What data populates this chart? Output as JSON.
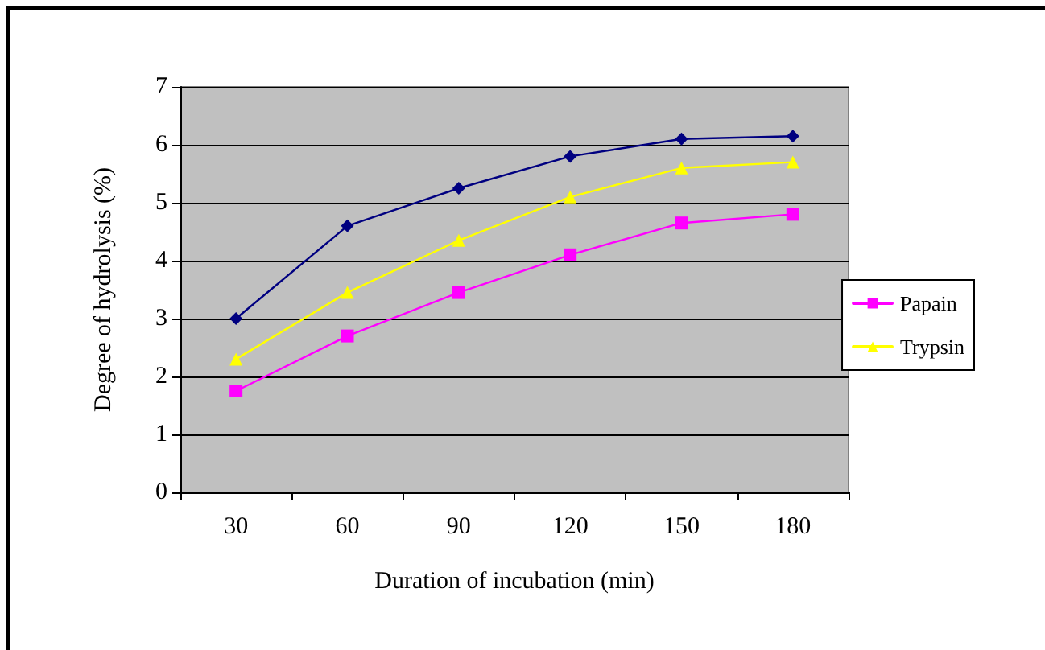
{
  "chart_data": {
    "type": "line",
    "xlabel": "Duration of incubation (min)",
    "ylabel": "Degree of hydrolysis (%)",
    "categories": [
      "30",
      "60",
      "90",
      "120",
      "150",
      "180"
    ],
    "series": [
      {
        "color": "#000080",
        "marker": "diamond",
        "values": [
          3.0,
          4.6,
          5.25,
          5.8,
          6.1,
          6.15
        ]
      },
      {
        "name": "Papain",
        "color": "#ff00ff",
        "marker": "square",
        "values": [
          1.75,
          2.7,
          3.45,
          4.1,
          4.65,
          4.8
        ]
      },
      {
        "name": "Trypsin",
        "color": "#ffff00",
        "marker": "triangle",
        "values": [
          2.3,
          3.45,
          4.35,
          5.1,
          5.6,
          5.7
        ]
      }
    ],
    "ylim": [
      0,
      7
    ],
    "yticks": [
      0,
      1,
      2,
      3,
      4,
      5,
      6,
      7
    ],
    "grid": "y",
    "legend": "right"
  }
}
